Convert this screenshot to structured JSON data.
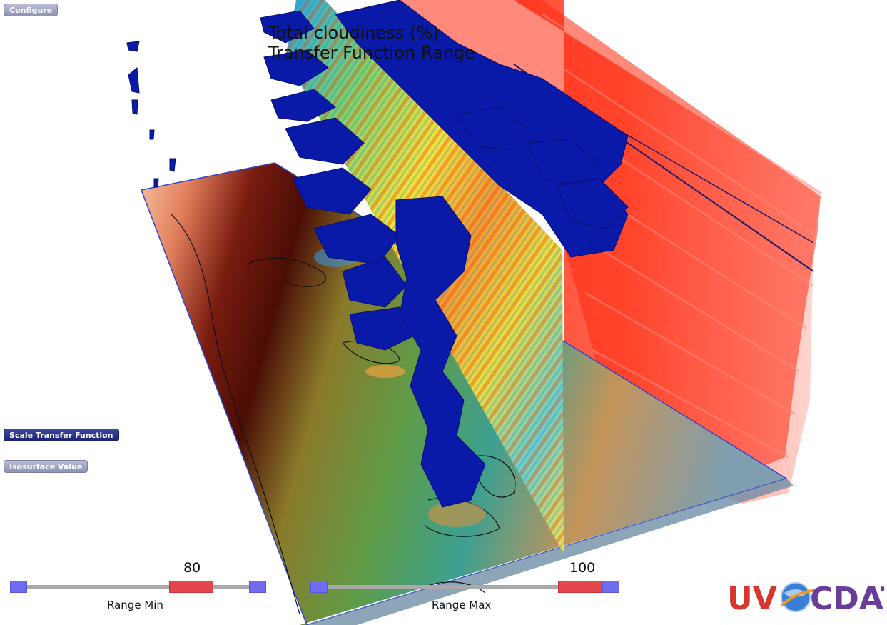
{
  "buttons": {
    "configure": "Configure",
    "scale_transfer_function": "Scale Transfer Function",
    "isosurface_value": "Isosurface Value"
  },
  "overlay": {
    "line1": "Total cloudiness (%)",
    "line2": "Transfer Function Range"
  },
  "slider_min": {
    "label": "Range Min",
    "value": "80",
    "position_fraction": 0.66
  },
  "slider_max": {
    "label": "Range Max",
    "value": "100",
    "position_fraction": 0.85
  },
  "logo": {
    "left": "UV",
    "right": "CDAT"
  },
  "colors": {
    "active_button": "#1c2370",
    "inactive_button": "#8e93b5",
    "slider_end": "#6f6cf2",
    "slider_knob": "#e4474b",
    "isosurface": "#0a1aa8",
    "volume": "#ff2a10",
    "logo_red": "#d8362d",
    "logo_purple": "#6a3d9a",
    "logo_orange": "#f29a1e"
  }
}
